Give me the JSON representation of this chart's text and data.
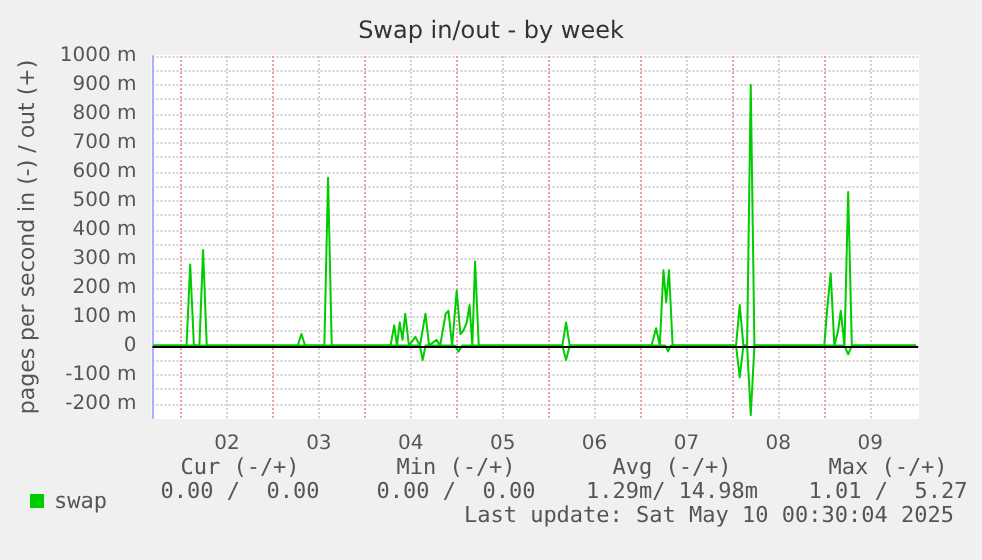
{
  "chart_data": {
    "type": "line",
    "title": "Swap in/out - by week",
    "ylabel": "pages per second in (-) / out (+)",
    "xlim": [
      1.69,
      10.02
    ],
    "xticks": [
      {
        "value": 2,
        "label": null
      },
      {
        "value": 2.5,
        "label": "02"
      },
      {
        "value": 3,
        "label": null
      },
      {
        "value": 3.5,
        "label": "03"
      },
      {
        "value": 4,
        "label": null
      },
      {
        "value": 4.5,
        "label": "04"
      },
      {
        "value": 5,
        "label": null
      },
      {
        "value": 5.5,
        "label": "05"
      },
      {
        "value": 6,
        "label": null
      },
      {
        "value": 6.5,
        "label": "06"
      },
      {
        "value": 7,
        "label": null
      },
      {
        "value": 7.5,
        "label": "07"
      },
      {
        "value": 8,
        "label": null
      },
      {
        "value": 8.5,
        "label": "08"
      },
      {
        "value": 9,
        "label": null
      },
      {
        "value": 9.5,
        "label": "09"
      }
    ],
    "ylim": [
      -250,
      1000
    ],
    "yticks": [
      {
        "value": -200,
        "label": "-200 m"
      },
      {
        "value": -150,
        "label": null
      },
      {
        "value": -100,
        "label": "-100 m"
      },
      {
        "value": -50,
        "label": null
      },
      {
        "value": 0,
        "label": "0"
      },
      {
        "value": 50,
        "label": null
      },
      {
        "value": 100,
        "label": "100 m"
      },
      {
        "value": 150,
        "label": null
      },
      {
        "value": 200,
        "label": "200 m"
      },
      {
        "value": 250,
        "label": null
      },
      {
        "value": 300,
        "label": "300 m"
      },
      {
        "value": 350,
        "label": null
      },
      {
        "value": 400,
        "label": "400 m"
      },
      {
        "value": 450,
        "label": null
      },
      {
        "value": 500,
        "label": "500 m"
      },
      {
        "value": 550,
        "label": null
      },
      {
        "value": 600,
        "label": "600 m"
      },
      {
        "value": 650,
        "label": null
      },
      {
        "value": 700,
        "label": "700 m"
      },
      {
        "value": 750,
        "label": null
      },
      {
        "value": 800,
        "label": "800 m"
      },
      {
        "value": 850,
        "label": null
      },
      {
        "value": 900,
        "label": "900 m"
      },
      {
        "value": 950,
        "label": null
      },
      {
        "value": 1000,
        "label": "1000 m"
      }
    ],
    "grid": true,
    "legend": "bottom left",
    "marker": "none",
    "line_style": "solid",
    "ref_lines": [
      {
        "axis": "y",
        "value": 0,
        "label": null,
        "color": "#000000"
      }
    ],
    "series": [
      {
        "name": "swap",
        "color": "#00cc00",
        "x": [
          1.7,
          2.06,
          2.1,
          2.14,
          2.2,
          2.24,
          2.28,
          3.27,
          3.31,
          3.35,
          3.56,
          3.6,
          3.64,
          4.28,
          4.32,
          4.35,
          4.38,
          4.41,
          4.44,
          4.48,
          4.55,
          4.6,
          4.66,
          4.7,
          4.78,
          4.82,
          4.88,
          4.91,
          4.95,
          5.0,
          5.04,
          5.07,
          5.11,
          5.14,
          5.17,
          5.2,
          5.24,
          6.15,
          6.19,
          6.23,
          7.12,
          7.17,
          7.21,
          7.25,
          7.28,
          7.31,
          7.35,
          8.04,
          8.08,
          8.12,
          8.16,
          8.2,
          8.24,
          9.0,
          9.03,
          9.07,
          9.11,
          9.15,
          9.18,
          9.22,
          9.26,
          9.3,
          10.0
        ],
        "values": [
          0,
          0,
          280,
          0,
          0,
          330,
          0,
          0,
          40,
          0,
          0,
          580,
          0,
          0,
          70,
          0,
          80,
          20,
          110,
          0,
          30,
          0,
          110,
          0,
          20,
          0,
          110,
          120,
          0,
          190,
          40,
          50,
          80,
          140,
          0,
          290,
          0,
          0,
          80,
          0,
          0,
          60,
          0,
          260,
          150,
          260,
          0,
          0,
          140,
          0,
          0,
          900,
          0,
          0,
          120,
          250,
          0,
          50,
          120,
          0,
          530,
          0,
          0
        ]
      },
      {
        "color": "#00cc00",
        "x": [
          1.7,
          4.6,
          4.63,
          4.66,
          4.98,
          5.02,
          5.06,
          6.15,
          6.19,
          6.23,
          7.27,
          7.3,
          7.33,
          8.04,
          8.08,
          8.12,
          8.16,
          8.2,
          8.24,
          9.22,
          9.26,
          9.3,
          10.0
        ],
        "values": [
          0,
          0,
          -50,
          0,
          0,
          -20,
          0,
          0,
          -50,
          0,
          0,
          -20,
          0,
          0,
          -110,
          0,
          0,
          -240,
          0,
          0,
          -30,
          0,
          0
        ]
      }
    ],
    "annotations": [
      "Cur (-/+)",
      "Min (-/+)",
      "Avg (-/+)",
      "Max (-/+)",
      "0.00 /  0.00",
      "0.00 /  0.00",
      "1.29m/ 14.98m",
      "1.01 /  5.27",
      "Last update: Sat May 10 00:30:04 2025"
    ]
  }
}
